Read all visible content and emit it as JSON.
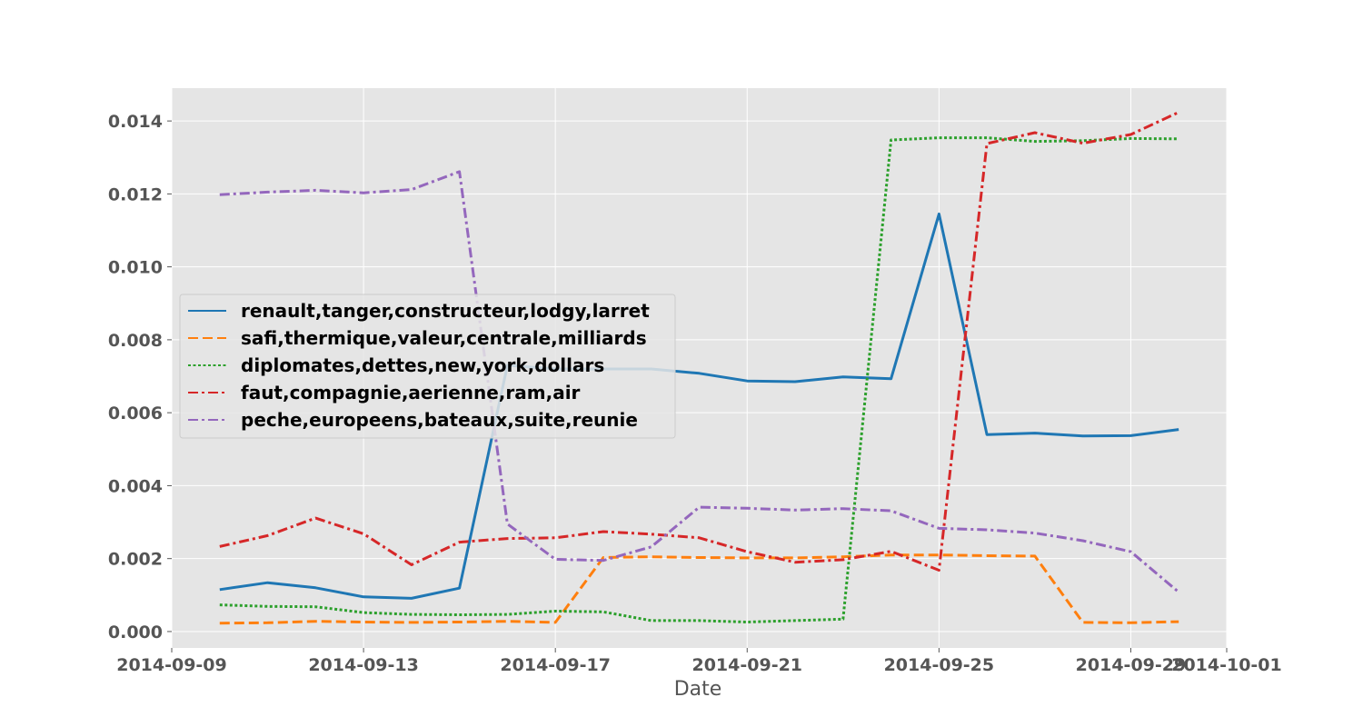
{
  "chart_data": {
    "type": "line",
    "title": "",
    "xlabel": "Date",
    "ylabel": "",
    "x_axis_type": "date",
    "xlim": [
      "2014-09-09",
      "2014-10-01"
    ],
    "ylim": [
      -0.00045,
      0.0149
    ],
    "x_ticks": [
      "2014-09-09",
      "2014-09-13",
      "2014-09-17",
      "2014-09-21",
      "2014-09-25",
      "2014-09-29",
      "2014-10-01"
    ],
    "y_ticks": [
      "0.000",
      "0.002",
      "0.004",
      "0.006",
      "0.008",
      "0.010",
      "0.012",
      "0.014"
    ],
    "grid": true,
    "style": "ggplot",
    "legend_position": "center-left",
    "x": [
      "2014-09-10",
      "2014-09-11",
      "2014-09-12",
      "2014-09-13",
      "2014-09-14",
      "2014-09-15",
      "2014-09-16",
      "2014-09-17",
      "2014-09-18",
      "2014-09-19",
      "2014-09-20",
      "2014-09-21",
      "2014-09-22",
      "2014-09-23",
      "2014-09-24",
      "2014-09-25",
      "2014-09-26",
      "2014-09-27",
      "2014-09-28",
      "2014-09-29",
      "2014-09-30"
    ],
    "series": [
      {
        "name": "renault,tanger,constructeur,lodgy,larret",
        "color": "#1f77b4",
        "dash": "solid",
        "values": [
          0.00115,
          0.00134,
          0.0012,
          0.00095,
          0.00091,
          0.00119,
          0.0073,
          0.0072,
          0.0072,
          0.0072,
          0.00708,
          0.00687,
          0.00685,
          0.00698,
          0.00693,
          0.01145,
          0.0054,
          0.00544,
          0.00536,
          0.00537,
          0.00554
        ]
      },
      {
        "name": "safi,thermique,valeur,centrale,milliards",
        "color": "#ff7f0e",
        "dash": "dashed",
        "values": [
          0.00023,
          0.00024,
          0.00028,
          0.00026,
          0.00025,
          0.00026,
          0.00028,
          0.00025,
          0.00203,
          0.00205,
          0.00203,
          0.00202,
          0.00202,
          0.00205,
          0.0021,
          0.0021,
          0.00208,
          0.00207,
          0.00025,
          0.00024,
          0.00027
        ]
      },
      {
        "name": "diplomates,dettes,new,york,dollars",
        "color": "#2ca02c",
        "dash": "dotted",
        "values": [
          0.00073,
          0.00069,
          0.00068,
          0.00052,
          0.00047,
          0.00046,
          0.00047,
          0.00056,
          0.00054,
          0.0003,
          0.0003,
          0.00026,
          0.0003,
          0.00034,
          0.01348,
          0.01354,
          0.01354,
          0.01344,
          0.01346,
          0.01352,
          0.01351
        ]
      },
      {
        "name": "faut,compagnie,aerienne,ram,air",
        "color": "#d62728",
        "dash": "dashdot",
        "values": [
          0.00233,
          0.00263,
          0.00311,
          0.00268,
          0.00183,
          0.00245,
          0.00255,
          0.00257,
          0.00274,
          0.00267,
          0.00257,
          0.00219,
          0.0019,
          0.00197,
          0.0022,
          0.00168,
          0.01338,
          0.01368,
          0.01339,
          0.01363,
          0.01424
        ]
      },
      {
        "name": "peche,europeens,bateaux,suite,reunie",
        "color": "#9467bd",
        "dash": "dashdot",
        "values": [
          0.01198,
          0.01205,
          0.0121,
          0.01203,
          0.01212,
          0.01261,
          0.00295,
          0.00198,
          0.00195,
          0.00232,
          0.00341,
          0.00338,
          0.00333,
          0.00337,
          0.00331,
          0.00283,
          0.00279,
          0.0027,
          0.00249,
          0.00219,
          0.00108
        ]
      }
    ]
  }
}
